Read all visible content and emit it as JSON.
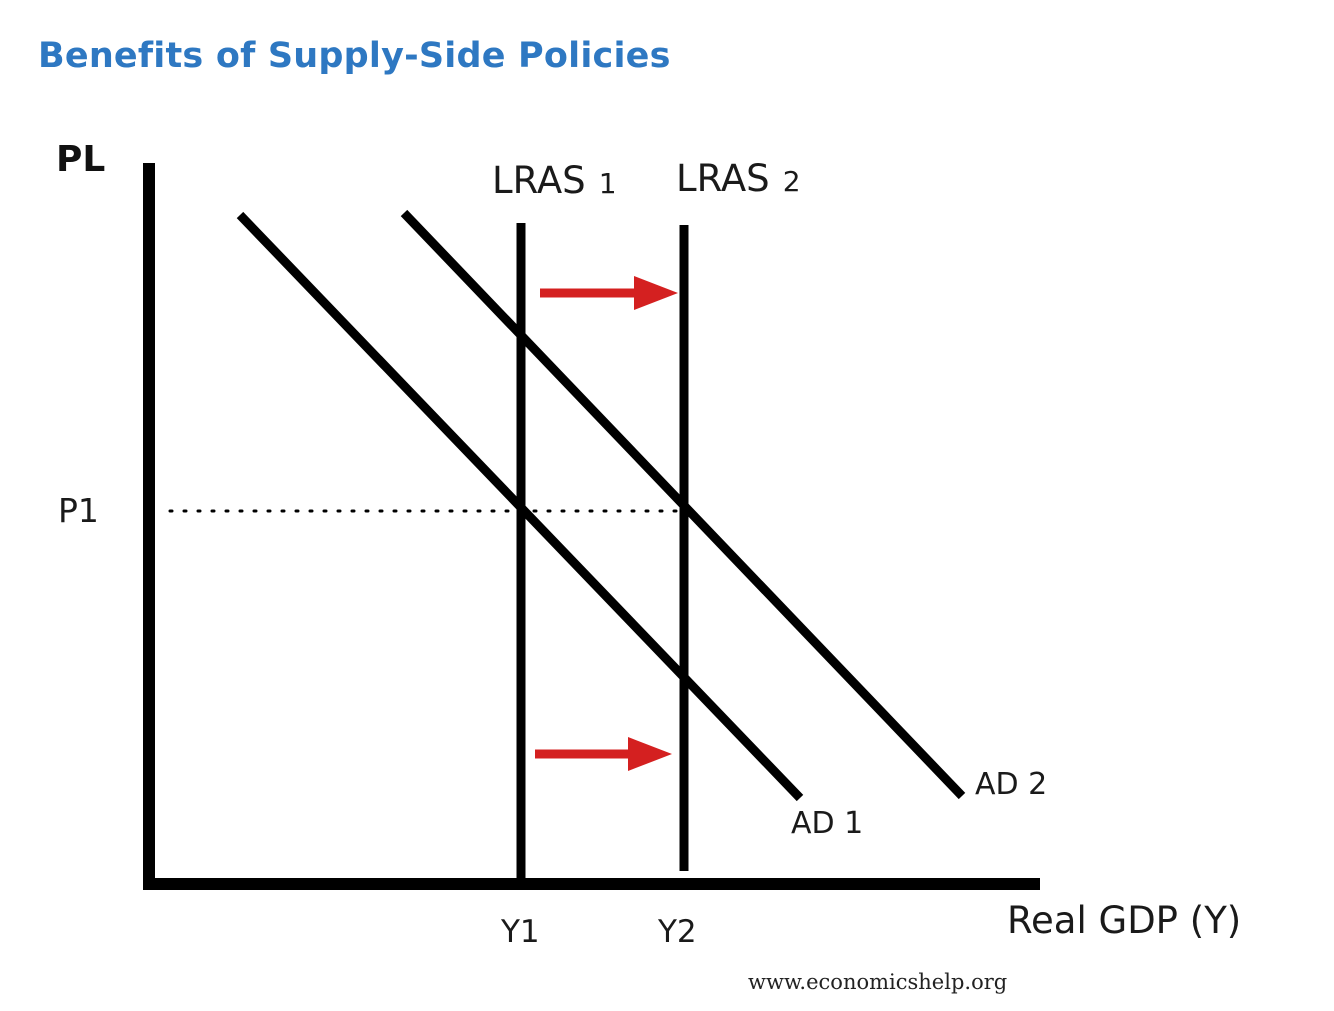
{
  "title": "Benefits of Supply-Side Policies",
  "diagram": {
    "y_axis_label": "PL",
    "x_axis_label": "Real GDP (Y)",
    "price_label": "P1",
    "output_labels": [
      "Y1",
      "Y2"
    ],
    "lras_labels": {
      "lras1": {
        "name": "LRAS",
        "sub": "1"
      },
      "lras2": {
        "name": "LRAS",
        "sub": "2"
      }
    },
    "ad_labels": {
      "ad1": "AD 1",
      "ad2": "AD 2"
    },
    "shift": "right",
    "colors": {
      "title": "#2e78c2",
      "lines": "#000000",
      "arrows": "#d42020"
    },
    "watermark": "www.economicshelp.org"
  }
}
